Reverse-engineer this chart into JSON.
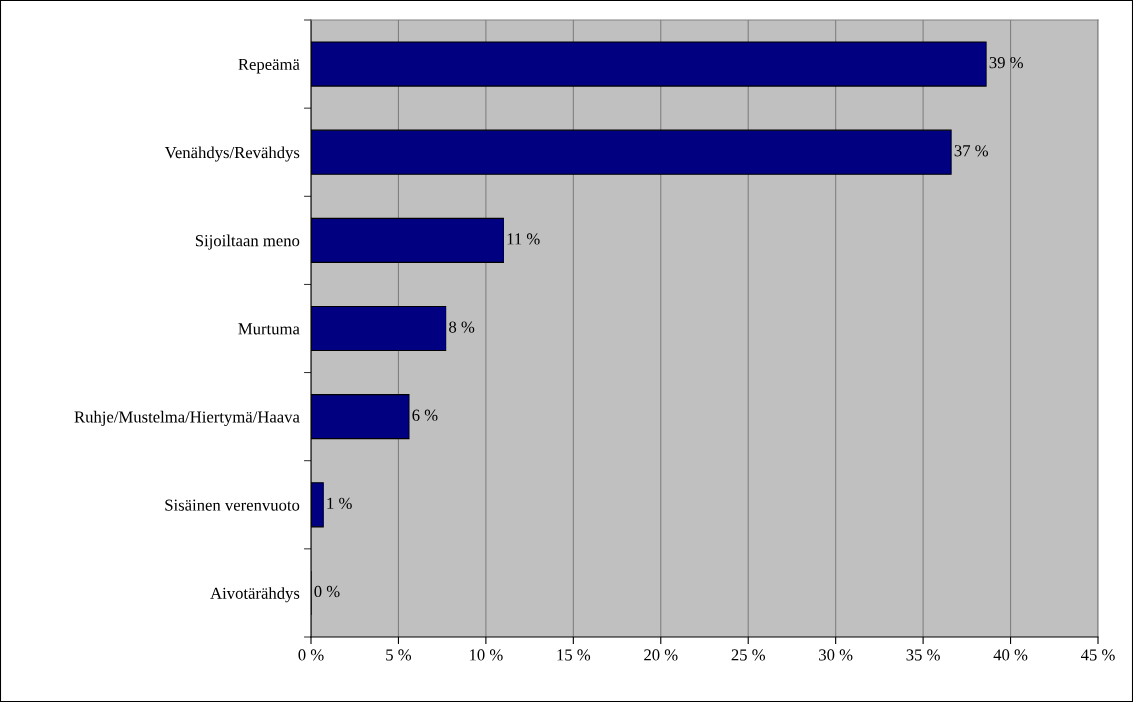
{
  "chart_data": {
    "type": "bar",
    "orientation": "horizontal",
    "categories": [
      "Repeämä",
      "Venähdys/Revähdys",
      "Sijoiltaan meno",
      "Murtuma",
      "Ruhje/Mustelma/Hiertymä/Haava",
      "Sisäinen verenvuoto",
      "Aivotärähdys"
    ],
    "values": [
      38.6,
      36.6,
      11.0,
      7.7,
      5.6,
      0.7,
      0
    ],
    "value_labels": [
      "39 %",
      "37 %",
      "11 %",
      "8 %",
      "6 %",
      "1 %",
      "0 %"
    ],
    "color": "#000080",
    "xlim": [
      0,
      45
    ],
    "xticks": [
      {
        "value": 0,
        "label": "0 %"
      },
      {
        "value": 5,
        "label": "5 %"
      },
      {
        "value": 10,
        "label": "10 %"
      },
      {
        "value": 15,
        "label": "15 %"
      },
      {
        "value": 20,
        "label": "20 %"
      },
      {
        "value": 25,
        "label": "25 %"
      },
      {
        "value": 30,
        "label": "30 %"
      },
      {
        "value": 35,
        "label": "35 %"
      },
      {
        "value": 40,
        "label": "40 %"
      },
      {
        "value": 45,
        "label": "45 %"
      }
    ],
    "grid": "x"
  }
}
